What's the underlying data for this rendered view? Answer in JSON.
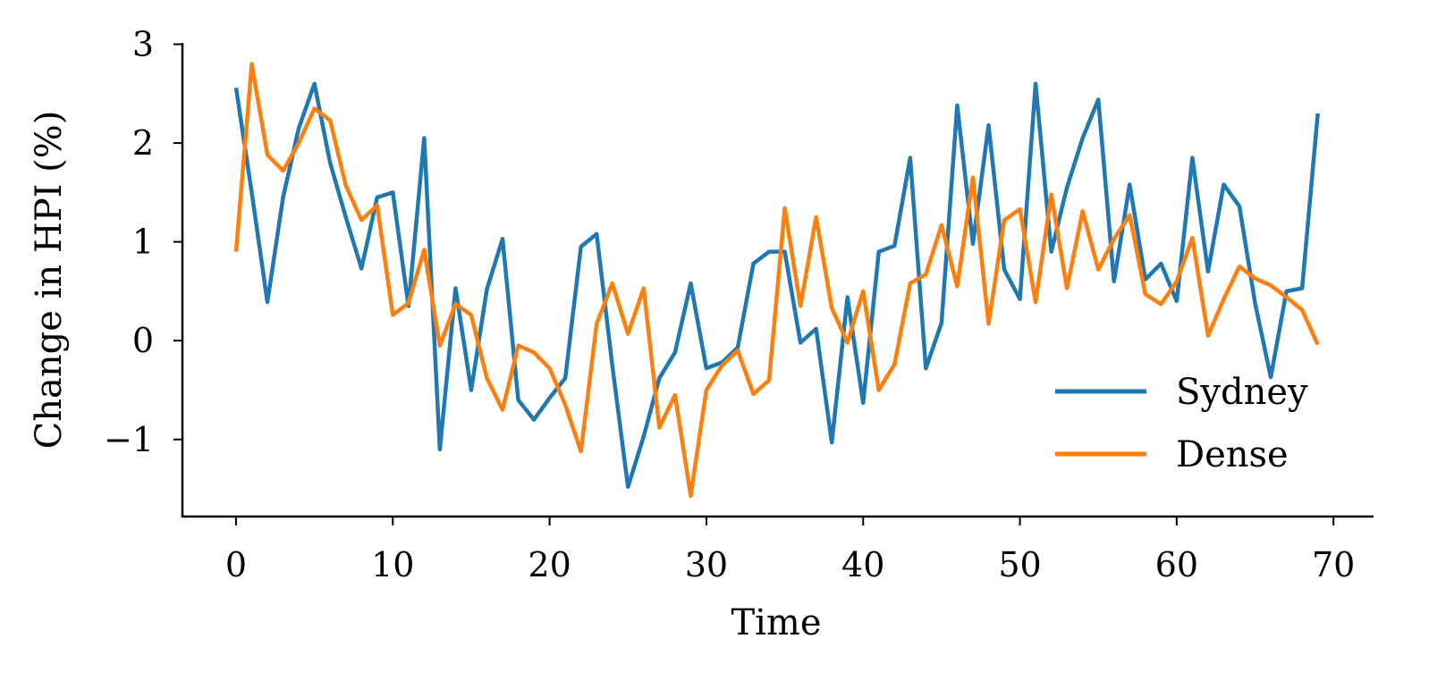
{
  "chart_data": {
    "type": "line",
    "title": "",
    "xlabel": "Time",
    "ylabel": "Change in HPI (%)",
    "xlim": [
      -3.42,
      72.5
    ],
    "ylim": [
      -1.78,
      3.0
    ],
    "xticks": [
      0,
      10,
      20,
      30,
      40,
      50,
      60,
      70
    ],
    "yticks": [
      -1,
      0,
      1,
      2,
      3
    ],
    "ytick_labels": [
      "−1",
      "0",
      "1",
      "2",
      "3"
    ],
    "grid": false,
    "legend_position": "lower-right",
    "series": [
      {
        "name": "Sydney",
        "color": "#1f77b4",
        "values": [
          2.56,
          1.5,
          0.39,
          1.45,
          2.15,
          2.6,
          1.8,
          1.25,
          0.73,
          1.45,
          1.5,
          0.35,
          2.05,
          -1.1,
          0.53,
          -0.5,
          0.52,
          1.03,
          -0.6,
          -0.8,
          -0.58,
          -0.38,
          0.95,
          1.08,
          -0.25,
          -1.48,
          -0.97,
          -0.38,
          -0.12,
          0.58,
          -0.28,
          -0.22,
          -0.07,
          0.78,
          0.9,
          0.9,
          -0.02,
          0.12,
          -1.03,
          0.44,
          -0.63,
          0.9,
          0.96,
          1.85,
          -0.28,
          0.18,
          2.38,
          0.98,
          2.18,
          0.72,
          0.42,
          2.6,
          0.9,
          1.55,
          2.05,
          2.44,
          0.6,
          1.58,
          0.62,
          0.78,
          0.4,
          1.85,
          0.7,
          1.58,
          1.36,
          0.38,
          -0.37,
          0.5,
          0.53,
          2.3
        ]
      },
      {
        "name": "Dense",
        "color": "#ff7f0e",
        "values": [
          0.9,
          2.8,
          1.88,
          1.72,
          2.0,
          2.35,
          2.23,
          1.57,
          1.22,
          1.37,
          0.26,
          0.38,
          0.92,
          -0.05,
          0.37,
          0.26,
          -0.38,
          -0.7,
          -0.05,
          -0.12,
          -0.28,
          -0.65,
          -1.12,
          0.17,
          0.58,
          0.07,
          0.53,
          -0.88,
          -0.55,
          -1.57,
          -0.5,
          -0.25,
          -0.1,
          -0.54,
          -0.4,
          1.34,
          0.35,
          1.25,
          0.33,
          -0.02,
          0.5,
          -0.5,
          -0.24,
          0.58,
          0.67,
          1.17,
          0.55,
          1.65,
          0.17,
          1.22,
          1.33,
          0.39,
          1.48,
          0.53,
          1.31,
          0.72,
          1.03,
          1.27,
          0.47,
          0.37,
          0.6,
          1.04,
          0.05,
          0.42,
          0.75,
          0.63,
          0.56,
          0.44,
          0.31,
          -0.04
        ]
      }
    ]
  }
}
